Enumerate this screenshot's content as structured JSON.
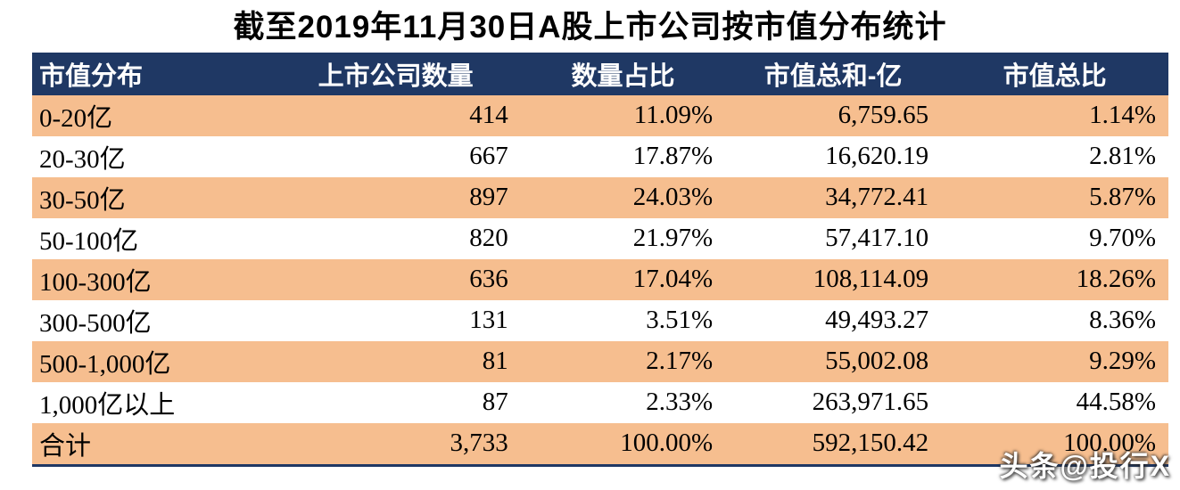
{
  "title": "截至2019年11月30日A股上市公司按市值分布统计",
  "watermark": "头条@投行X",
  "colors": {
    "header_bg": "#1F3864",
    "header_text": "#FFFFFF",
    "stripe_bg": "#F6BE8F",
    "row_bg": "#FFFFFF",
    "title_text": "#000000"
  },
  "table": {
    "headers": [
      "市值分布",
      "上市公司数量",
      "数量占比",
      "市值总和-亿",
      "市值总比"
    ],
    "rows": [
      [
        "0-20亿",
        "414",
        "11.09%",
        "6,759.65",
        "1.14%"
      ],
      [
        "20-30亿",
        "667",
        "17.87%",
        "16,620.19",
        "2.81%"
      ],
      [
        "30-50亿",
        "897",
        "24.03%",
        "34,772.41",
        "5.87%"
      ],
      [
        "50-100亿",
        "820",
        "21.97%",
        "57,417.10",
        "9.70%"
      ],
      [
        "100-300亿",
        "636",
        "17.04%",
        "108,114.09",
        "18.26%"
      ],
      [
        "300-500亿",
        "131",
        "3.51%",
        "49,493.27",
        "8.36%"
      ],
      [
        "500-1,000亿",
        "81",
        "2.17%",
        "55,002.08",
        "9.29%"
      ],
      [
        "1,000亿以上",
        "87",
        "2.33%",
        "263,971.65",
        "44.58%"
      ],
      [
        "合计",
        "3,733",
        "100.00%",
        "592,150.42",
        "100.00%"
      ]
    ]
  },
  "chart_data": {
    "type": "table",
    "title": "截至2019年11月30日A股上市公司按市值分布统计",
    "columns": [
      "市值分布",
      "上市公司数量",
      "数量占比",
      "市值总和-亿",
      "市值总比"
    ],
    "rows": [
      {
        "market_cap_range": "0-20亿",
        "company_count": 414,
        "count_pct": 11.09,
        "total_market_cap_yi": 6759.65,
        "cap_pct": 1.14
      },
      {
        "market_cap_range": "20-30亿",
        "company_count": 667,
        "count_pct": 17.87,
        "total_market_cap_yi": 16620.19,
        "cap_pct": 2.81
      },
      {
        "market_cap_range": "30-50亿",
        "company_count": 897,
        "count_pct": 24.03,
        "total_market_cap_yi": 34772.41,
        "cap_pct": 5.87
      },
      {
        "market_cap_range": "50-100亿",
        "company_count": 820,
        "count_pct": 21.97,
        "total_market_cap_yi": 57417.1,
        "cap_pct": 9.7
      },
      {
        "market_cap_range": "100-300亿",
        "company_count": 636,
        "count_pct": 17.04,
        "total_market_cap_yi": 108114.09,
        "cap_pct": 18.26
      },
      {
        "market_cap_range": "300-500亿",
        "company_count": 131,
        "count_pct": 3.51,
        "total_market_cap_yi": 49493.27,
        "cap_pct": 8.36
      },
      {
        "market_cap_range": "500-1,000亿",
        "company_count": 81,
        "count_pct": 2.17,
        "total_market_cap_yi": 55002.08,
        "cap_pct": 9.29
      },
      {
        "market_cap_range": "1,000亿以上",
        "company_count": 87,
        "count_pct": 2.33,
        "total_market_cap_yi": 263971.65,
        "cap_pct": 44.58
      }
    ],
    "total_row": {
      "market_cap_range": "合计",
      "company_count": 3733,
      "count_pct": 100.0,
      "total_market_cap_yi": 592150.42,
      "cap_pct": 100.0
    }
  }
}
